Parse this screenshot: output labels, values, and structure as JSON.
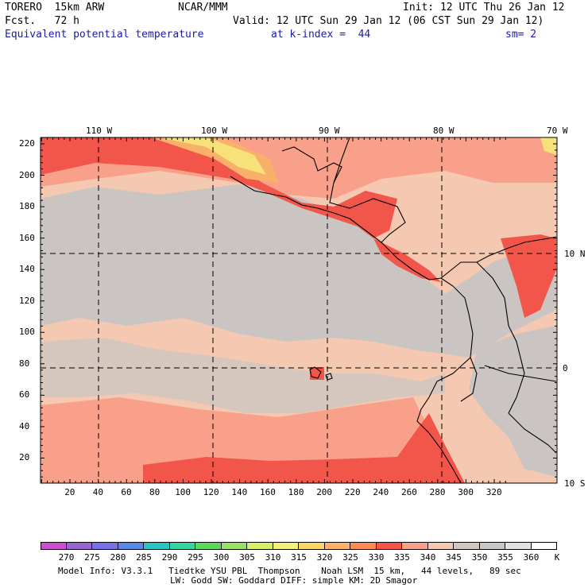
{
  "header": {
    "model": "TORERO  15km ARW",
    "org": "NCAR/MMM",
    "init": "Init: 12 UTC Thu 26 Jan 12",
    "fcst": "Fcst.   72 h",
    "valid": "Valid: 12 UTC Sun 29 Jan 12 (06 CST Sun 29 Jan 12)",
    "field": "Equivalent potential temperature",
    "level": "at k-index =  44",
    "smooth": "sm= 2"
  },
  "axes": {
    "top_lon": [
      "110 W",
      "100 W",
      "90 W",
      "80 W",
      "70 W"
    ],
    "left_y": [
      "220",
      "200",
      "180",
      "160",
      "140",
      "120",
      "100",
      "80",
      "60",
      "40",
      "20"
    ],
    "bottom_x": [
      "20",
      "40",
      "60",
      "80",
      "100",
      "120",
      "140",
      "160",
      "180",
      "200",
      "220",
      "240",
      "260",
      "280",
      "300",
      "320"
    ],
    "right_lat": [
      "10 N",
      "0",
      "10 S"
    ]
  },
  "colorbar": {
    "labels": [
      "270",
      "275",
      "280",
      "285",
      "290",
      "295",
      "300",
      "305",
      "310",
      "315",
      "320",
      "325",
      "330",
      "335",
      "340",
      "345",
      "350",
      "355",
      "360"
    ],
    "unit": "K",
    "colors": [
      "#cc4fcc",
      "#9966cc",
      "#7a70e8",
      "#5a8ae8",
      "#2ec2c2",
      "#33d6a0",
      "#5ad95a",
      "#99e066",
      "#d9ef66",
      "#f2f27a",
      "#f9d966",
      "#ffb066",
      "#ff8a55",
      "#f2564a",
      "#f9a08a",
      "#f5c8b2",
      "#d2c8c2",
      "#c8c8c8",
      "#e2e2e2",
      "#ffffff"
    ]
  },
  "footer": {
    "line1": "Model Info: V3.3.1   Tiedtke YSU PBL  Thompson    Noah LSM  15 km,   44 levels,   89 sec",
    "line2": "LW: Godd SW: Goddard DIFF: simple KM: 2D Smagor"
  },
  "map_colors": {
    "base": "#f5c8b2",
    "gray": "#cac5c2",
    "warm": "#f9a08a",
    "hot": "#f2564a",
    "orange": "#f9b06b",
    "yellow": "#f7e27a",
    "land": "#d7cdc8"
  }
}
